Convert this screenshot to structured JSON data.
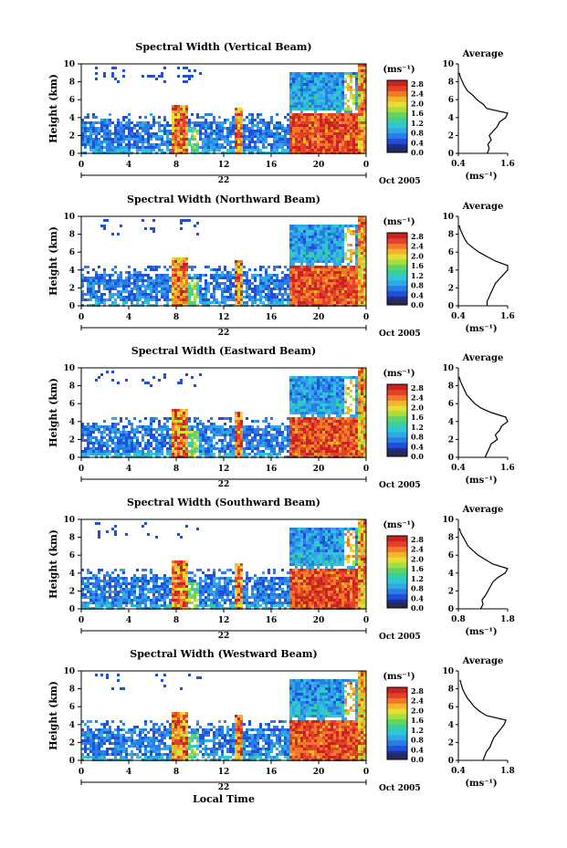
{
  "figure": {
    "xlabel": "Local Time",
    "date_label": "Oct 2005",
    "day_label": "22",
    "unit_label": "(ms⁻¹)",
    "colorbar_ticks": [
      "2.8",
      "2.4",
      "2.0",
      "1.6",
      "1.2",
      "0.8",
      "0.4",
      "0.0"
    ],
    "colors": {
      "low": "#1c3fb8",
      "mid": "#26c3d9",
      "green": "#58d46a",
      "yellow": "#f2e23a",
      "orange": "#f29a2a",
      "high": "#e8332c",
      "no_data": "#ffffff"
    }
  },
  "chart_data": [
    {
      "type": "heatmap",
      "title": "Spectral Width (Vertical Beam)",
      "ylabel": "Height (km)",
      "xlabel": "Local Time",
      "x_ticks": [
        "0",
        "4",
        "8",
        "12",
        "16",
        "20",
        "0"
      ],
      "y_ticks": [
        "0",
        "2",
        "4",
        "6",
        "8",
        "10"
      ],
      "xlim": [
        0,
        24
      ],
      "ylim": [
        0,
        10
      ],
      "average_profile": {
        "title": "Average",
        "xlabel": "(ms⁻¹)",
        "x_ticks": [
          "0.4",
          "1.6"
        ],
        "y_ticks": [
          "0",
          "2",
          "4",
          "6",
          "8",
          "10"
        ],
        "xlim": [
          0.4,
          1.6
        ],
        "height": [
          0,
          0.5,
          1,
          1.5,
          2,
          2.5,
          3,
          3.5,
          4,
          4.5,
          5,
          5.5,
          6,
          6.5,
          7,
          7.5,
          8,
          8.5,
          9
        ],
        "value": [
          1.1,
          1.15,
          1.12,
          1.2,
          1.15,
          1.25,
          1.35,
          1.4,
          1.55,
          1.6,
          1.1,
          1.0,
          0.85,
          0.75,
          0.62,
          0.55,
          0.5,
          0.45,
          0.42
        ]
      }
    },
    {
      "type": "heatmap",
      "title": "Spectral Width (Northward Beam)",
      "ylabel": "Height (km)",
      "xlabel": "Local Time",
      "x_ticks": [
        "0",
        "4",
        "8",
        "12",
        "16",
        "20",
        "0"
      ],
      "y_ticks": [
        "0",
        "2",
        "4",
        "6",
        "8",
        "10"
      ],
      "xlim": [
        0,
        24
      ],
      "ylim": [
        0,
        10
      ],
      "average_profile": {
        "title": "Average",
        "xlabel": "(ms⁻¹)",
        "x_ticks": [
          "0.4",
          "1.6"
        ],
        "y_ticks": [
          "0",
          "2",
          "4",
          "6",
          "8",
          "10"
        ],
        "xlim": [
          0.4,
          1.6
        ],
        "height": [
          0,
          0.5,
          1,
          1.5,
          2,
          2.5,
          3,
          3.5,
          4,
          4.5,
          5,
          5.5,
          6,
          6.5,
          7,
          7.5,
          8,
          8.5,
          9
        ],
        "value": [
          1.1,
          1.1,
          1.15,
          1.2,
          1.25,
          1.3,
          1.4,
          1.5,
          1.6,
          1.6,
          1.3,
          1.1,
          0.9,
          0.75,
          0.62,
          0.55,
          0.5,
          0.45,
          0.42
        ]
      }
    },
    {
      "type": "heatmap",
      "title": "Spectral Width (Eastward Beam)",
      "ylabel": "Height (km)",
      "xlabel": "Local Time",
      "x_ticks": [
        "0",
        "4",
        "8",
        "12",
        "16",
        "20",
        "0"
      ],
      "y_ticks": [
        "0",
        "2",
        "4",
        "6",
        "8",
        "10"
      ],
      "xlim": [
        0,
        24
      ],
      "ylim": [
        0,
        10
      ],
      "average_profile": {
        "title": "Average",
        "xlabel": "(ms⁻¹)",
        "x_ticks": [
          "0.4",
          "1.6"
        ],
        "y_ticks": [
          "0",
          "2",
          "4",
          "6",
          "8",
          "10"
        ],
        "xlim": [
          0.4,
          1.6
        ],
        "height": [
          0,
          0.5,
          1,
          1.5,
          2,
          2.5,
          3,
          3.5,
          4,
          4.5,
          5,
          5.5,
          6,
          6.5,
          7,
          7.5,
          8,
          8.5,
          9
        ],
        "value": [
          1.05,
          1.1,
          1.15,
          1.2,
          1.35,
          1.3,
          1.4,
          1.45,
          1.6,
          1.55,
          1.2,
          0.95,
          0.8,
          0.7,
          0.6,
          0.55,
          0.5,
          0.45,
          0.42
        ]
      }
    },
    {
      "type": "heatmap",
      "title": "Spectral Width (Southward Beam)",
      "ylabel": "Height (km)",
      "xlabel": "Local Time",
      "x_ticks": [
        "0",
        "4",
        "8",
        "12",
        "16",
        "20",
        "0"
      ],
      "y_ticks": [
        "0",
        "2",
        "4",
        "6",
        "8",
        "10"
      ],
      "xlim": [
        0,
        24
      ],
      "ylim": [
        0,
        10
      ],
      "average_profile": {
        "title": "Average",
        "xlabel": "(ms⁻¹)",
        "x_ticks": [
          "0.8",
          "1.8"
        ],
        "y_ticks": [
          "0",
          "2",
          "4",
          "6",
          "8",
          "10"
        ],
        "xlim": [
          0.8,
          1.8
        ],
        "height": [
          0,
          0.5,
          1,
          1.5,
          2,
          2.5,
          3,
          3.5,
          4,
          4.5,
          5,
          5.5,
          6,
          6.5,
          7,
          7.5,
          8,
          8.5,
          9
        ],
        "value": [
          1.25,
          1.3,
          1.28,
          1.35,
          1.4,
          1.45,
          1.5,
          1.6,
          1.75,
          1.8,
          1.5,
          1.35,
          1.2,
          1.1,
          1.0,
          0.95,
          0.9,
          0.85,
          0.82
        ]
      }
    },
    {
      "type": "heatmap",
      "title": "Spectral Width (Westward Beam)",
      "ylabel": "Height (km)",
      "xlabel": "Local Time",
      "x_ticks": [
        "0",
        "4",
        "8",
        "12",
        "16",
        "20",
        "0"
      ],
      "y_ticks": [
        "0",
        "2",
        "4",
        "6",
        "8",
        "10"
      ],
      "xlim": [
        0,
        24
      ],
      "ylim": [
        0,
        10
      ],
      "average_profile": {
        "title": "Average",
        "xlabel": "(ms⁻¹)",
        "x_ticks": [
          "0.4",
          "1.8"
        ],
        "y_ticks": [
          "0",
          "2",
          "4",
          "6",
          "8",
          "10"
        ],
        "xlim": [
          0.4,
          1.8
        ],
        "height": [
          0,
          0.5,
          1,
          1.5,
          2,
          2.5,
          3,
          3.5,
          4,
          4.5,
          5,
          5.5,
          6,
          6.5,
          7,
          7.5,
          8,
          8.5,
          9
        ],
        "value": [
          1.1,
          1.15,
          1.2,
          1.3,
          1.35,
          1.4,
          1.5,
          1.6,
          1.7,
          1.75,
          1.2,
          1.0,
          0.85,
          0.75,
          0.65,
          0.58,
          0.52,
          0.48,
          0.45
        ]
      }
    }
  ]
}
